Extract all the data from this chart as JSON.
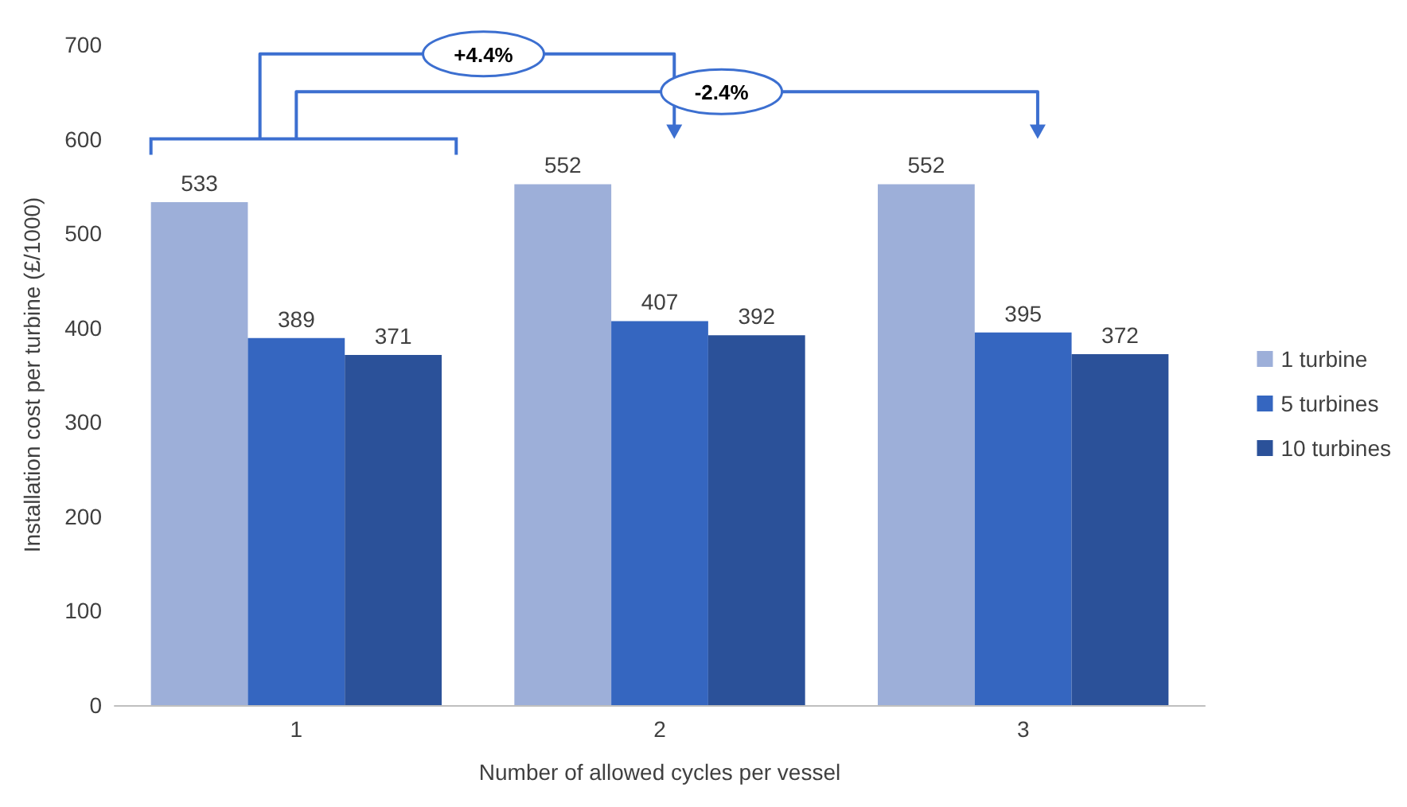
{
  "chart_data": {
    "type": "bar",
    "xlabel": "Number of allowed cycles per vessel",
    "ylabel": "Installation cost per turbine (£/1000)",
    "categories": [
      "1",
      "2",
      "3"
    ],
    "series": [
      {
        "name": "1 turbine",
        "color": "#9dafd9",
        "values": [
          533,
          552,
          552
        ]
      },
      {
        "name": "5 turbines",
        "color": "#3566c0",
        "values": [
          389,
          407,
          395
        ]
      },
      {
        "name": "10 turbines",
        "color": "#2b5199",
        "values": [
          371,
          392,
          372
        ]
      }
    ],
    "ylim": [
      0,
      700
    ],
    "yticks": [
      0,
      100,
      200,
      300,
      400,
      500,
      600,
      700
    ],
    "grid": false,
    "legend": "right",
    "data_labels": true,
    "annotations": [
      "+4.4%",
      "-2.4%"
    ]
  }
}
